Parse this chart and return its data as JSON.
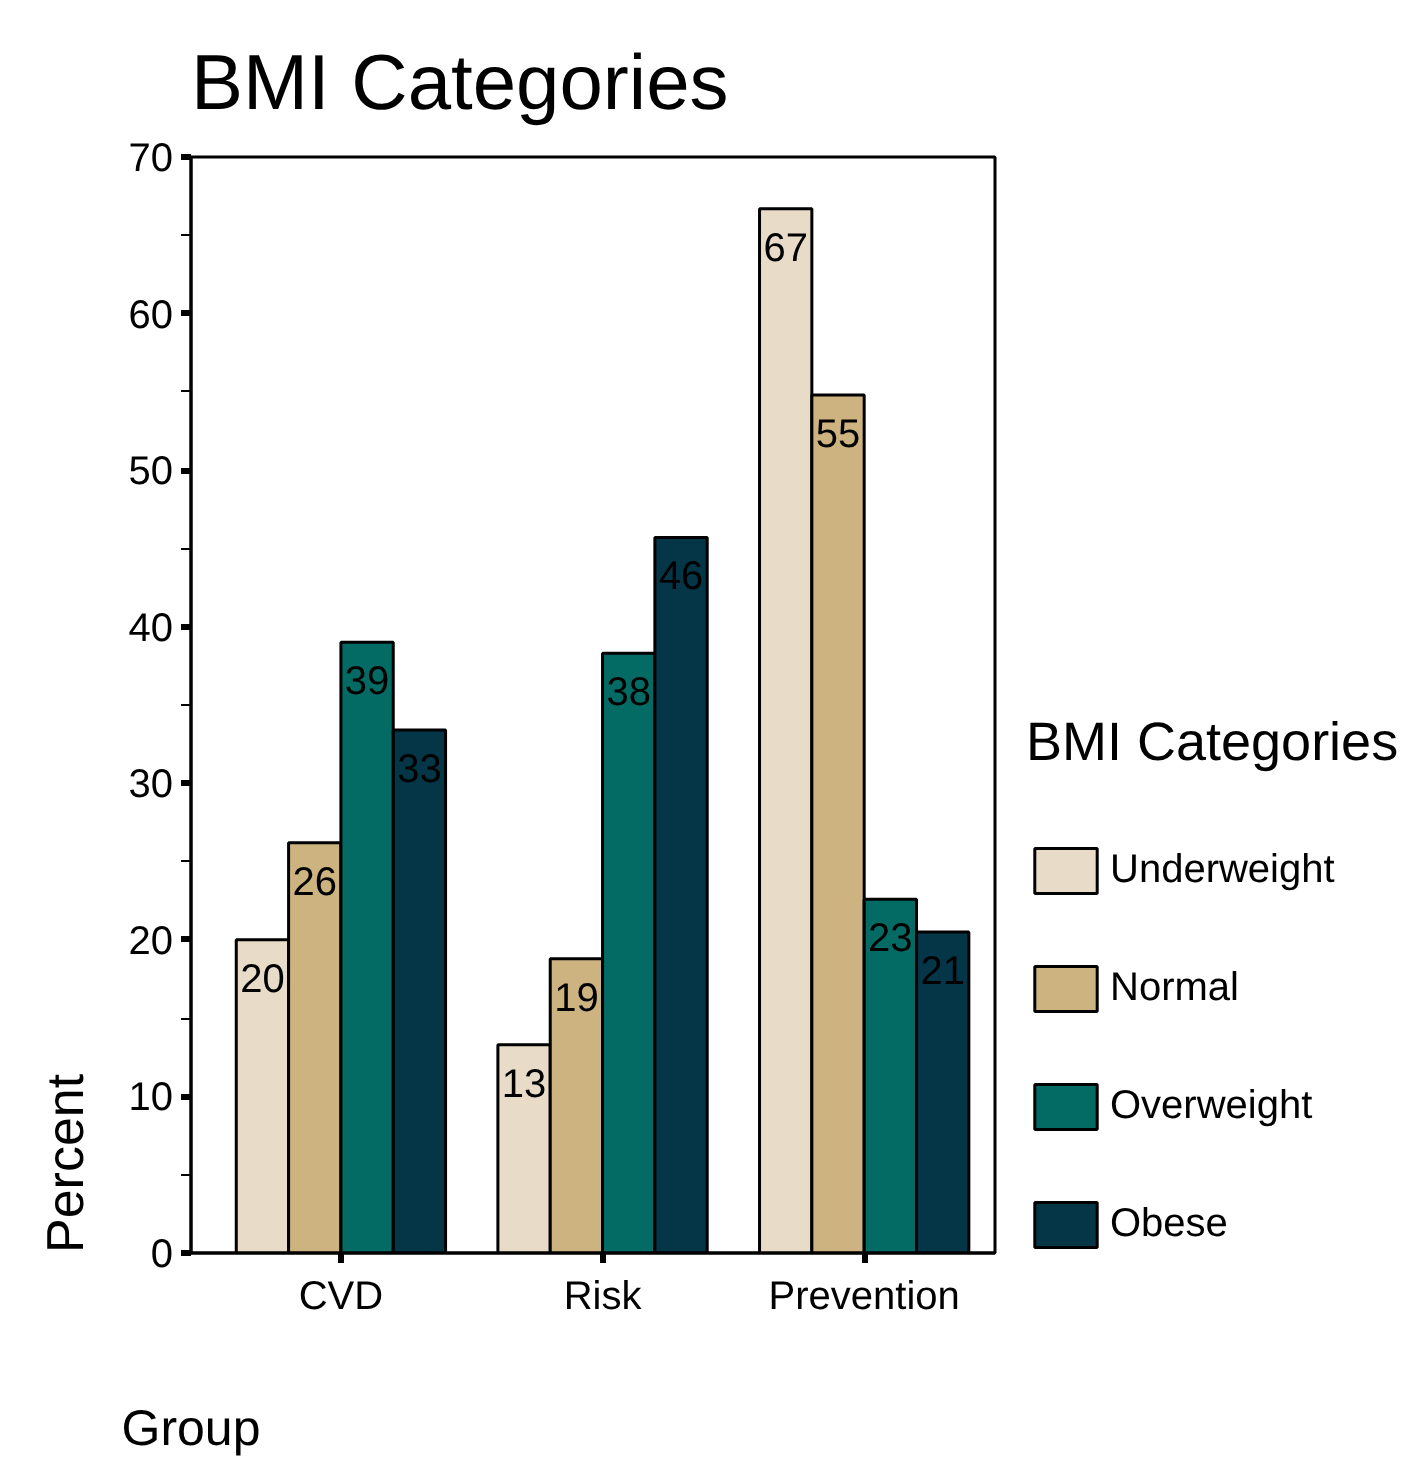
{
  "chart_data": {
    "type": "bar",
    "title": "BMI Categories",
    "xlabel": "Group",
    "ylabel": "Percent",
    "legend_title": "BMI Categories",
    "categories": [
      "CVD",
      "Risk",
      "Prevention"
    ],
    "series": [
      {
        "name": "Underweight",
        "color": "#e8dcc8",
        "values": [
          20.0,
          13.3,
          66.7
        ],
        "value_labels": [
          "20",
          "13",
          "67"
        ]
      },
      {
        "name": "Normal",
        "color": "#cdb380",
        "values": [
          26.2,
          18.8,
          54.8
        ],
        "value_labels": [
          "26",
          "19",
          "55"
        ]
      },
      {
        "name": "Overweight",
        "color": "#046a64",
        "values": [
          39.0,
          38.3,
          22.6
        ],
        "value_labels": [
          "39",
          "38",
          "23"
        ]
      },
      {
        "name": "Obese",
        "color": "#043648",
        "values": [
          33.4,
          45.7,
          20.5
        ],
        "value_labels": [
          "33",
          "46",
          "21"
        ]
      }
    ],
    "ylim": [
      0,
      70
    ],
    "yticks": [
      0,
      {
        "value": 5,
        "label": null
      },
      10,
      {
        "value": 15,
        "label": null
      },
      20,
      {
        "value": 25,
        "label": null
      },
      30,
      {
        "value": 35,
        "label": null
      },
      40,
      {
        "value": 45,
        "label": null
      },
      50,
      {
        "value": 55,
        "label": null
      },
      60,
      {
        "value": 65,
        "label": null
      },
      70
    ],
    "grid": false,
    "legend": "right"
  }
}
